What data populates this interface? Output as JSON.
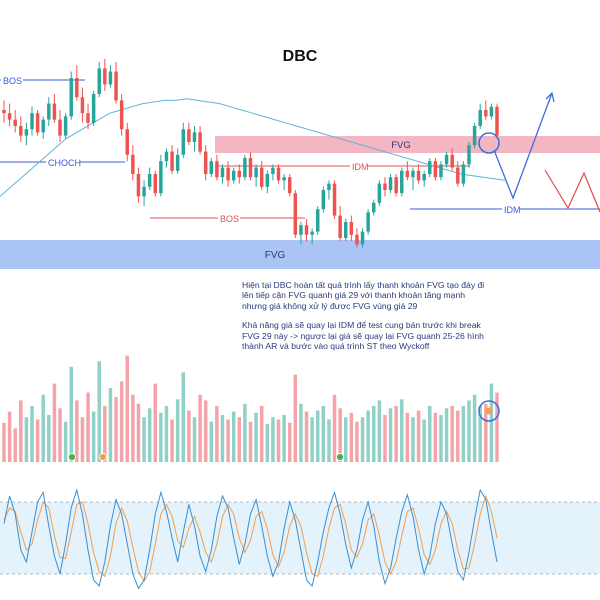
{
  "chart_data": {
    "type": "candlestick",
    "title": "DBC",
    "colors": {
      "up": "#26a69a",
      "down": "#ef5350",
      "ma": "#5fb3d9",
      "fvg_top": "#f4b6c2",
      "fvg_bottom": "#a9c4f5",
      "projection_up": "#3a6fd8",
      "projection_down": "#e04a4a",
      "stoch_band": "#e3f2fb",
      "stoch_k": "#3a8fd0",
      "stoch_d": "#f0a050",
      "annotation_text": "#2a3a7a"
    },
    "price_range": [
      24,
      31.5
    ],
    "candles": [
      [
        29.0,
        29.3,
        28.6,
        28.9
      ],
      [
        28.9,
        29.2,
        28.5,
        28.7
      ],
      [
        28.7,
        29.0,
        28.3,
        28.5
      ],
      [
        28.5,
        28.8,
        28.0,
        28.2
      ],
      [
        28.2,
        28.6,
        27.9,
        28.4
      ],
      [
        28.4,
        29.1,
        28.2,
        28.9
      ],
      [
        28.9,
        29.0,
        28.2,
        28.3
      ],
      [
        28.3,
        28.8,
        28.1,
        28.7
      ],
      [
        28.7,
        29.4,
        28.5,
        29.2
      ],
      [
        29.2,
        29.5,
        28.6,
        28.7
      ],
      [
        28.7,
        29.0,
        28.0,
        28.2
      ],
      [
        28.2,
        28.9,
        28.1,
        28.8
      ],
      [
        28.8,
        30.2,
        28.7,
        30.0
      ],
      [
        30.0,
        30.4,
        29.3,
        29.4
      ],
      [
        29.4,
        29.7,
        28.6,
        28.9
      ],
      [
        28.9,
        29.2,
        28.4,
        28.6
      ],
      [
        28.6,
        29.6,
        28.5,
        29.5
      ],
      [
        29.5,
        30.5,
        29.4,
        30.3
      ],
      [
        30.3,
        30.6,
        29.6,
        29.8
      ],
      [
        29.8,
        30.4,
        29.7,
        30.2
      ],
      [
        30.2,
        30.5,
        29.2,
        29.3
      ],
      [
        29.3,
        29.5,
        28.2,
        28.4
      ],
      [
        28.4,
        28.6,
        27.4,
        27.6
      ],
      [
        27.6,
        27.9,
        26.8,
        27.0
      ],
      [
        27.0,
        27.2,
        26.1,
        26.3
      ],
      [
        26.3,
        26.8,
        26.0,
        26.6
      ],
      [
        26.6,
        27.2,
        26.5,
        27.0
      ],
      [
        27.0,
        27.1,
        26.3,
        26.4
      ],
      [
        26.4,
        27.6,
        26.3,
        27.4
      ],
      [
        27.4,
        27.8,
        27.2,
        27.7
      ],
      [
        27.7,
        27.9,
        27.0,
        27.1
      ],
      [
        27.1,
        27.8,
        27.0,
        27.6
      ],
      [
        27.6,
        28.6,
        27.5,
        28.4
      ],
      [
        28.4,
        28.6,
        27.9,
        28.0
      ],
      [
        28.0,
        28.5,
        27.7,
        28.3
      ],
      [
        28.3,
        28.5,
        27.6,
        27.7
      ],
      [
        27.7,
        27.9,
        26.8,
        27.0
      ],
      [
        27.0,
        27.5,
        26.9,
        27.4
      ],
      [
        27.4,
        27.6,
        26.8,
        26.9
      ],
      [
        26.9,
        27.3,
        26.7,
        27.2
      ],
      [
        27.2,
        27.4,
        26.6,
        26.8
      ],
      [
        26.8,
        27.2,
        26.7,
        27.1
      ],
      [
        27.1,
        27.3,
        26.7,
        26.9
      ],
      [
        26.9,
        27.6,
        26.8,
        27.5
      ],
      [
        27.5,
        27.7,
        26.8,
        26.9
      ],
      [
        26.9,
        27.3,
        26.6,
        27.2
      ],
      [
        27.2,
        27.4,
        26.5,
        26.6
      ],
      [
        26.6,
        27.1,
        26.4,
        27.0
      ],
      [
        27.0,
        27.3,
        26.8,
        27.2
      ],
      [
        27.2,
        27.3,
        26.7,
        26.8
      ],
      [
        26.8,
        27.0,
        26.5,
        26.9
      ],
      [
        26.9,
        27.0,
        26.3,
        26.4
      ],
      [
        26.4,
        26.5,
        25.0,
        25.1
      ],
      [
        25.1,
        25.5,
        24.8,
        25.4
      ],
      [
        25.4,
        25.6,
        24.9,
        25.1
      ],
      [
        25.1,
        25.3,
        24.8,
        25.2
      ],
      [
        25.2,
        26.0,
        25.1,
        25.9
      ],
      [
        25.9,
        26.6,
        25.8,
        26.5
      ],
      [
        26.5,
        26.8,
        26.2,
        26.7
      ],
      [
        26.7,
        26.8,
        25.6,
        25.7
      ],
      [
        25.7,
        26.0,
        24.9,
        25.0
      ],
      [
        25.0,
        25.6,
        24.9,
        25.5
      ],
      [
        25.5,
        25.7,
        24.9,
        25.1
      ],
      [
        25.1,
        25.3,
        24.7,
        24.8
      ],
      [
        24.8,
        25.3,
        24.7,
        25.2
      ],
      [
        25.2,
        25.9,
        25.1,
        25.8
      ],
      [
        25.8,
        26.2,
        25.7,
        26.1
      ],
      [
        26.1,
        26.8,
        26.0,
        26.7
      ],
      [
        26.7,
        26.9,
        26.3,
        26.5
      ],
      [
        26.5,
        27.0,
        26.4,
        26.9
      ],
      [
        26.9,
        27.0,
        26.3,
        26.4
      ],
      [
        26.4,
        27.2,
        26.3,
        27.1
      ],
      [
        27.1,
        27.4,
        26.8,
        26.9
      ],
      [
        26.9,
        27.2,
        26.5,
        27.1
      ],
      [
        27.1,
        27.3,
        26.7,
        26.8
      ],
      [
        26.8,
        27.1,
        26.6,
        27.0
      ],
      [
        27.0,
        27.5,
        26.9,
        27.4
      ],
      [
        27.4,
        27.5,
        26.8,
        26.9
      ],
      [
        26.9,
        27.4,
        26.8,
        27.3
      ],
      [
        27.3,
        27.7,
        27.2,
        27.6
      ],
      [
        27.6,
        27.8,
        27.1,
        27.2
      ],
      [
        27.2,
        27.4,
        26.6,
        26.7
      ],
      [
        26.7,
        27.4,
        26.6,
        27.3
      ],
      [
        27.3,
        28.0,
        27.2,
        27.9
      ],
      [
        27.9,
        28.6,
        27.8,
        28.5
      ],
      [
        28.5,
        29.2,
        28.4,
        29.0
      ],
      [
        29.0,
        29.3,
        28.7,
        28.8
      ],
      [
        28.8,
        29.2,
        28.7,
        29.1
      ],
      [
        29.1,
        29.2,
        28.1,
        28.2
      ]
    ],
    "ma_values": [
      26.3,
      26.6,
      26.9,
      27.2,
      27.5,
      27.8,
      28.1,
      28.3,
      28.5,
      28.7,
      28.9,
      29.0,
      29.1,
      29.2,
      29.25,
      29.3,
      29.3,
      29.35,
      29.3,
      29.25,
      29.2,
      29.1,
      29.0,
      28.9,
      28.8,
      28.7,
      28.6,
      28.5,
      28.4,
      28.3,
      28.2,
      28.1,
      28.0,
      27.9,
      27.8,
      27.7,
      27.6,
      27.5,
      27.4,
      27.3,
      27.2,
      27.1,
      27.0,
      26.95,
      26.9,
      26.85,
      26.8
    ],
    "annotations": {
      "bos_top": "BOS",
      "choch": "CHOCH",
      "fvg_top": "FVG",
      "idm_mid": "IDM",
      "bos_mid": "BOS",
      "fvg_bottom": "FVG",
      "idm_right": "IDM"
    },
    "volume": [
      0.35,
      0.45,
      0.3,
      0.55,
      0.4,
      0.5,
      0.38,
      0.6,
      0.42,
      0.7,
      0.48,
      0.36,
      0.85,
      0.55,
      0.4,
      0.62,
      0.45,
      0.9,
      0.5,
      0.66,
      0.58,
      0.72,
      0.95,
      0.6,
      0.52,
      0.4,
      0.48,
      0.7,
      0.44,
      0.5,
      0.38,
      0.56,
      0.8,
      0.46,
      0.4,
      0.6,
      0.55,
      0.36,
      0.5,
      0.42,
      0.38,
      0.45,
      0.4,
      0.52,
      0.36,
      0.44,
      0.5,
      0.34,
      0.4,
      0.38,
      0.42,
      0.35,
      0.78,
      0.52,
      0.45,
      0.4,
      0.46,
      0.5,
      0.38,
      0.6,
      0.48,
      0.4,
      0.44,
      0.36,
      0.4,
      0.46,
      0.5,
      0.55,
      0.42,
      0.48,
      0.5,
      0.56,
      0.44,
      0.4,
      0.46,
      0.38,
      0.5,
      0.44,
      0.42,
      0.48,
      0.5,
      0.46,
      0.5,
      0.55,
      0.6,
      0.5,
      0.52,
      0.7,
      0.62
    ],
    "stoch_k": [
      62,
      85,
      70,
      40,
      30,
      55,
      80,
      88,
      60,
      35,
      20,
      45,
      75,
      90,
      70,
      40,
      15,
      10,
      30,
      60,
      82,
      70,
      45,
      20,
      8,
      15,
      40,
      70,
      88,
      72,
      50,
      30,
      55,
      78,
      60,
      35,
      22,
      40,
      68,
      85,
      75,
      50,
      28,
      45,
      70,
      82,
      60,
      35,
      18,
      30,
      58,
      80,
      65,
      40,
      15,
      10,
      30,
      55,
      75,
      88,
      70,
      45,
      25,
      40,
      65,
      80,
      60,
      30,
      12,
      25,
      50,
      72,
      86,
      68,
      40,
      20,
      35,
      62,
      80,
      70,
      45,
      22,
      15,
      38,
      66,
      90,
      82,
      55,
      30
    ],
    "stoch_d": [
      65,
      75,
      72,
      55,
      40,
      45,
      65,
      80,
      75,
      52,
      34,
      33,
      55,
      78,
      80,
      62,
      38,
      22,
      18,
      35,
      62,
      75,
      64,
      42,
      22,
      14,
      22,
      45,
      70,
      78,
      68,
      48,
      42,
      58,
      68,
      55,
      38,
      30,
      45,
      68,
      78,
      70,
      50,
      38,
      48,
      68,
      72,
      58,
      36,
      26,
      38,
      60,
      70,
      60,
      38,
      20,
      18,
      35,
      58,
      75,
      78,
      62,
      40,
      34,
      45,
      65,
      70,
      52,
      30,
      20,
      30,
      52,
      72,
      75,
      58,
      36,
      28,
      40,
      62,
      72,
      62,
      40,
      24,
      25,
      45,
      70,
      85,
      72,
      50
    ],
    "stoch_band": [
      20,
      80
    ]
  },
  "annotation_text": {
    "paragraph_1": "Hiện tại DBC hoàn tất quá trình lấy thanh khoản FVG tạo đáy đi lên tiếp cận FVG quanh giá 29 với thanh khoản tăng mạnh nhưng giá không xử lý được FVG vùng giá 29",
    "paragraph_2": "Khả năng giá sẽ quay lại IDM để test cung bán trước khi break FVG 29 này -> ngược lại giá sẽ quay lại FVG quanh 25-26 hình thành AR và bước vào quá trình ST theo Wyckoff"
  }
}
